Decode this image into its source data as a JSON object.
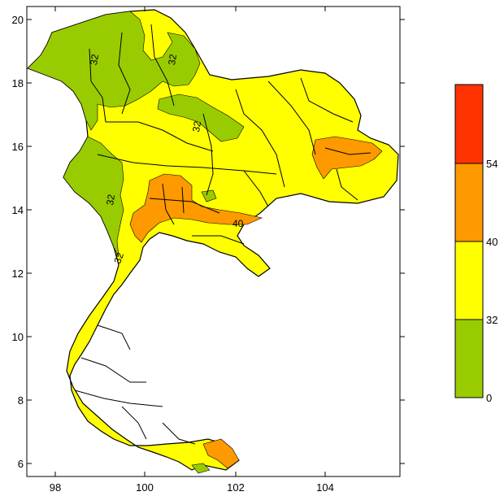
{
  "map": {
    "x_ticks": [
      "98",
      "100",
      "102",
      "104"
    ],
    "y_ticks": [
      "6",
      "8",
      "10",
      "12",
      "14",
      "16",
      "18",
      "20"
    ],
    "contour_labels": [
      "32",
      "32",
      "32",
      "32",
      "40",
      "32"
    ]
  },
  "legend": {
    "tick_labels": [
      "54",
      "40",
      "32",
      "0"
    ],
    "bins": [
      {
        "color": "#99cc00",
        "range": [
          0,
          32
        ]
      },
      {
        "color": "#ffff00",
        "range": [
          32,
          40
        ]
      },
      {
        "color": "#ff9900",
        "range": [
          40,
          54
        ]
      },
      {
        "color": "#ff3300",
        "range": [
          54,
          null
        ]
      }
    ]
  },
  "colors": {
    "green": "#99cc00",
    "yellow": "#ffff00",
    "orange": "#ff9900",
    "red": "#ff3300",
    "border": "#000000"
  }
}
